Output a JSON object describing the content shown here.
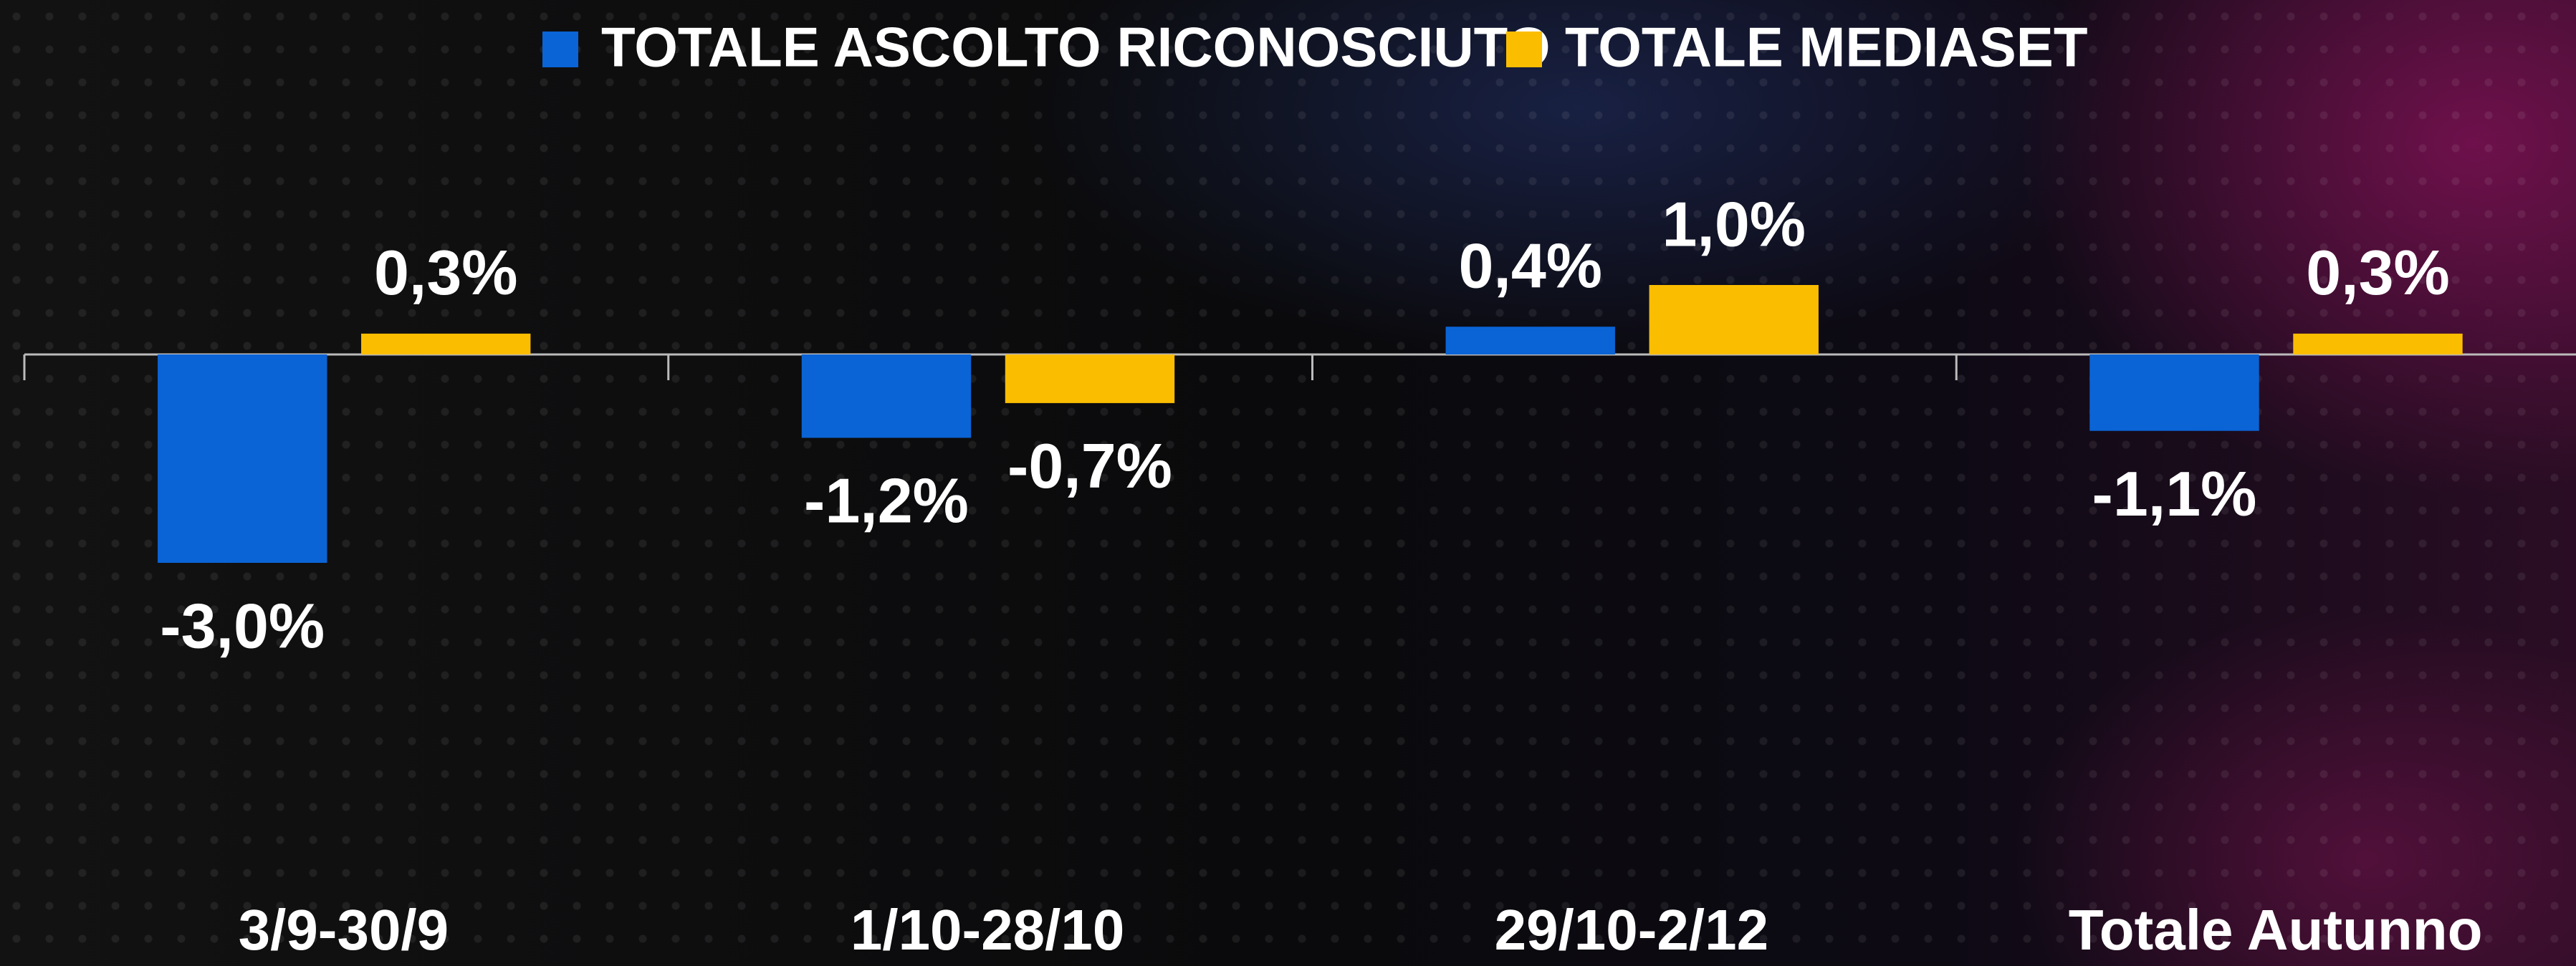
{
  "chart_data": {
    "type": "bar",
    "categories": [
      "3/9-30/9",
      "1/10-28/10",
      "29/10-2/12",
      "Totale Autunno"
    ],
    "series": [
      {
        "name": "TOTALE ASCOLTO RICONOSCIUTO",
        "color": "#0a64d6",
        "values": [
          -3.0,
          -1.2,
          0.4,
          -1.1
        ],
        "value_labels": [
          "-3,0%",
          "-1,2%",
          "0,4%",
          "-1,1%"
        ]
      },
      {
        "name": "TOTALE MEDIASET",
        "color": "#fbbd00",
        "values": [
          0.3,
          -0.7,
          1.0,
          0.3
        ],
        "value_labels": [
          "0,3%",
          "-0,7%",
          "1,0%",
          "0,3%"
        ]
      }
    ]
  }
}
